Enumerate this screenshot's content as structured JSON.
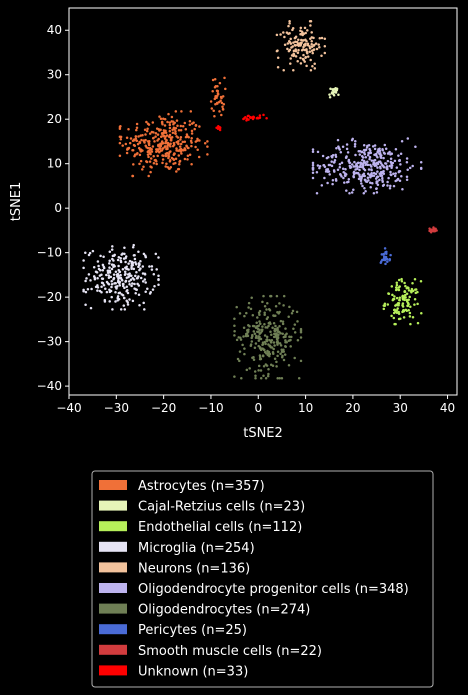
{
  "chart_data": {
    "type": "scatter",
    "xlabel": "tSNE2",
    "ylabel": "tSNE1",
    "xlim": [
      -40,
      42
    ],
    "ylim": [
      -42,
      45
    ],
    "xticks": [
      -40,
      -30,
      -20,
      -10,
      0,
      10,
      20,
      30,
      40
    ],
    "yticks": [
      -40,
      -30,
      -20,
      -10,
      0,
      10,
      20,
      30,
      40
    ],
    "grid": false,
    "legend_position": "bottom-center",
    "background": "#000000",
    "foreground": "#ffffff",
    "series": [
      {
        "name": "Astrocytes (n=357)",
        "color": "#f07038",
        "clusters": [
          {
            "cx": -20,
            "cy": 14.5,
            "sx": 4.2,
            "sy": 3.3,
            "n": 320
          },
          {
            "cx": -8.5,
            "cy": 25,
            "sx": 0.7,
            "sy": 2.2,
            "n": 37
          }
        ]
      },
      {
        "name": "Cajal-Retzius cells (n=23)",
        "color": "#e6f4b8",
        "clusters": [
          {
            "cx": 16,
            "cy": 26,
            "sx": 0.5,
            "sy": 0.6,
            "n": 23
          }
        ]
      },
      {
        "name": "Endothelial cells (n=112)",
        "color": "#b6ef5a",
        "clusters": [
          {
            "cx": 30.5,
            "cy": -21,
            "sx": 1.8,
            "sy": 2.3,
            "n": 112
          }
        ]
      },
      {
        "name": "Microglia (n=254)",
        "color": "#e6e4f4",
        "clusters": [
          {
            "cx": -29,
            "cy": -15.5,
            "sx": 3.6,
            "sy": 3.3,
            "n": 254
          }
        ]
      },
      {
        "name": "Neurons (n=136)",
        "color": "#f2c29c",
        "clusters": [
          {
            "cx": 9,
            "cy": 36.5,
            "sx": 2.3,
            "sy": 2.5,
            "n": 136
          }
        ]
      },
      {
        "name": "Oligodendrocyte progenitor cells (n=348)",
        "color": "#bdb3ee",
        "clusters": [
          {
            "cx": 23,
            "cy": 9.5,
            "sx": 5.2,
            "sy": 2.8,
            "n": 348
          }
        ]
      },
      {
        "name": "Oligodendrocytes (n=274)",
        "color": "#6f7f55",
        "clusters": [
          {
            "cx": 2,
            "cy": -29,
            "sx": 3.2,
            "sy": 4.2,
            "n": 274
          }
        ]
      },
      {
        "name": "Pericytes (n=25)",
        "color": "#4a6bd6",
        "clusters": [
          {
            "cx": 27,
            "cy": -10.8,
            "sx": 0.5,
            "sy": 0.8,
            "n": 25
          }
        ]
      },
      {
        "name": "Smooth muscle cells (n=22)",
        "color": "#d23c3e",
        "clusters": [
          {
            "cx": 36.8,
            "cy": -5,
            "sx": 0.4,
            "sy": 0.3,
            "n": 22
          }
        ]
      },
      {
        "name": "Unknown (n=33)",
        "color": "#ff0000",
        "clusters": [
          {
            "cx": -1,
            "cy": 20.2,
            "sx": 1.4,
            "sy": 0.35,
            "n": 24
          },
          {
            "cx": -8.3,
            "cy": 18,
            "sx": 0.3,
            "sy": 0.3,
            "n": 9
          }
        ]
      }
    ]
  }
}
